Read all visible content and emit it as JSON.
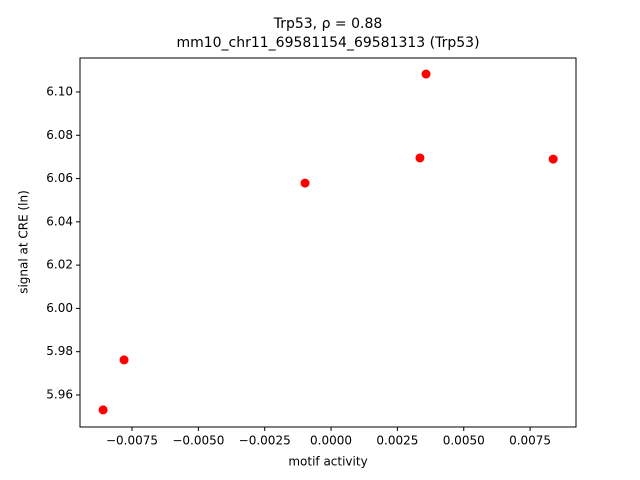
{
  "chart_data": {
    "type": "scatter",
    "title": "Trp53, ρ = 0.88",
    "subtitle": "mm10_chr11_69581154_69581313 (Trp53)",
    "x_label": "motif activity",
    "y_label": "signal at CRE (ln)",
    "color": "#ff0000",
    "x": [
      -0.00859,
      -0.0078,
      -0.00098,
      0.00335,
      0.00358,
      0.00837
    ],
    "values": [
      5.9531,
      5.9762,
      6.0579,
      6.0695,
      6.1083,
      6.069
    ],
    "xlim": [
      -0.00946,
      0.00923
    ],
    "ylim": [
      5.9452,
      6.1157
    ],
    "xticks": [
      {
        "value": -0.0075,
        "label": "−0.0075"
      },
      {
        "value": -0.005,
        "label": "−0.0050"
      },
      {
        "value": -0.0025,
        "label": "−0.0025"
      },
      {
        "value": 0,
        "label": "0.0000"
      },
      0.0025,
      {
        "value": 0.005,
        "label": "0.0050"
      },
      0.0075
    ],
    "yticks": [
      5.96,
      5.98,
      {
        "value": 6.0,
        "label": "6.00"
      },
      6.02,
      6.04,
      6.06,
      6.08,
      {
        "value": 6.1,
        "label": "6.10"
      }
    ]
  }
}
